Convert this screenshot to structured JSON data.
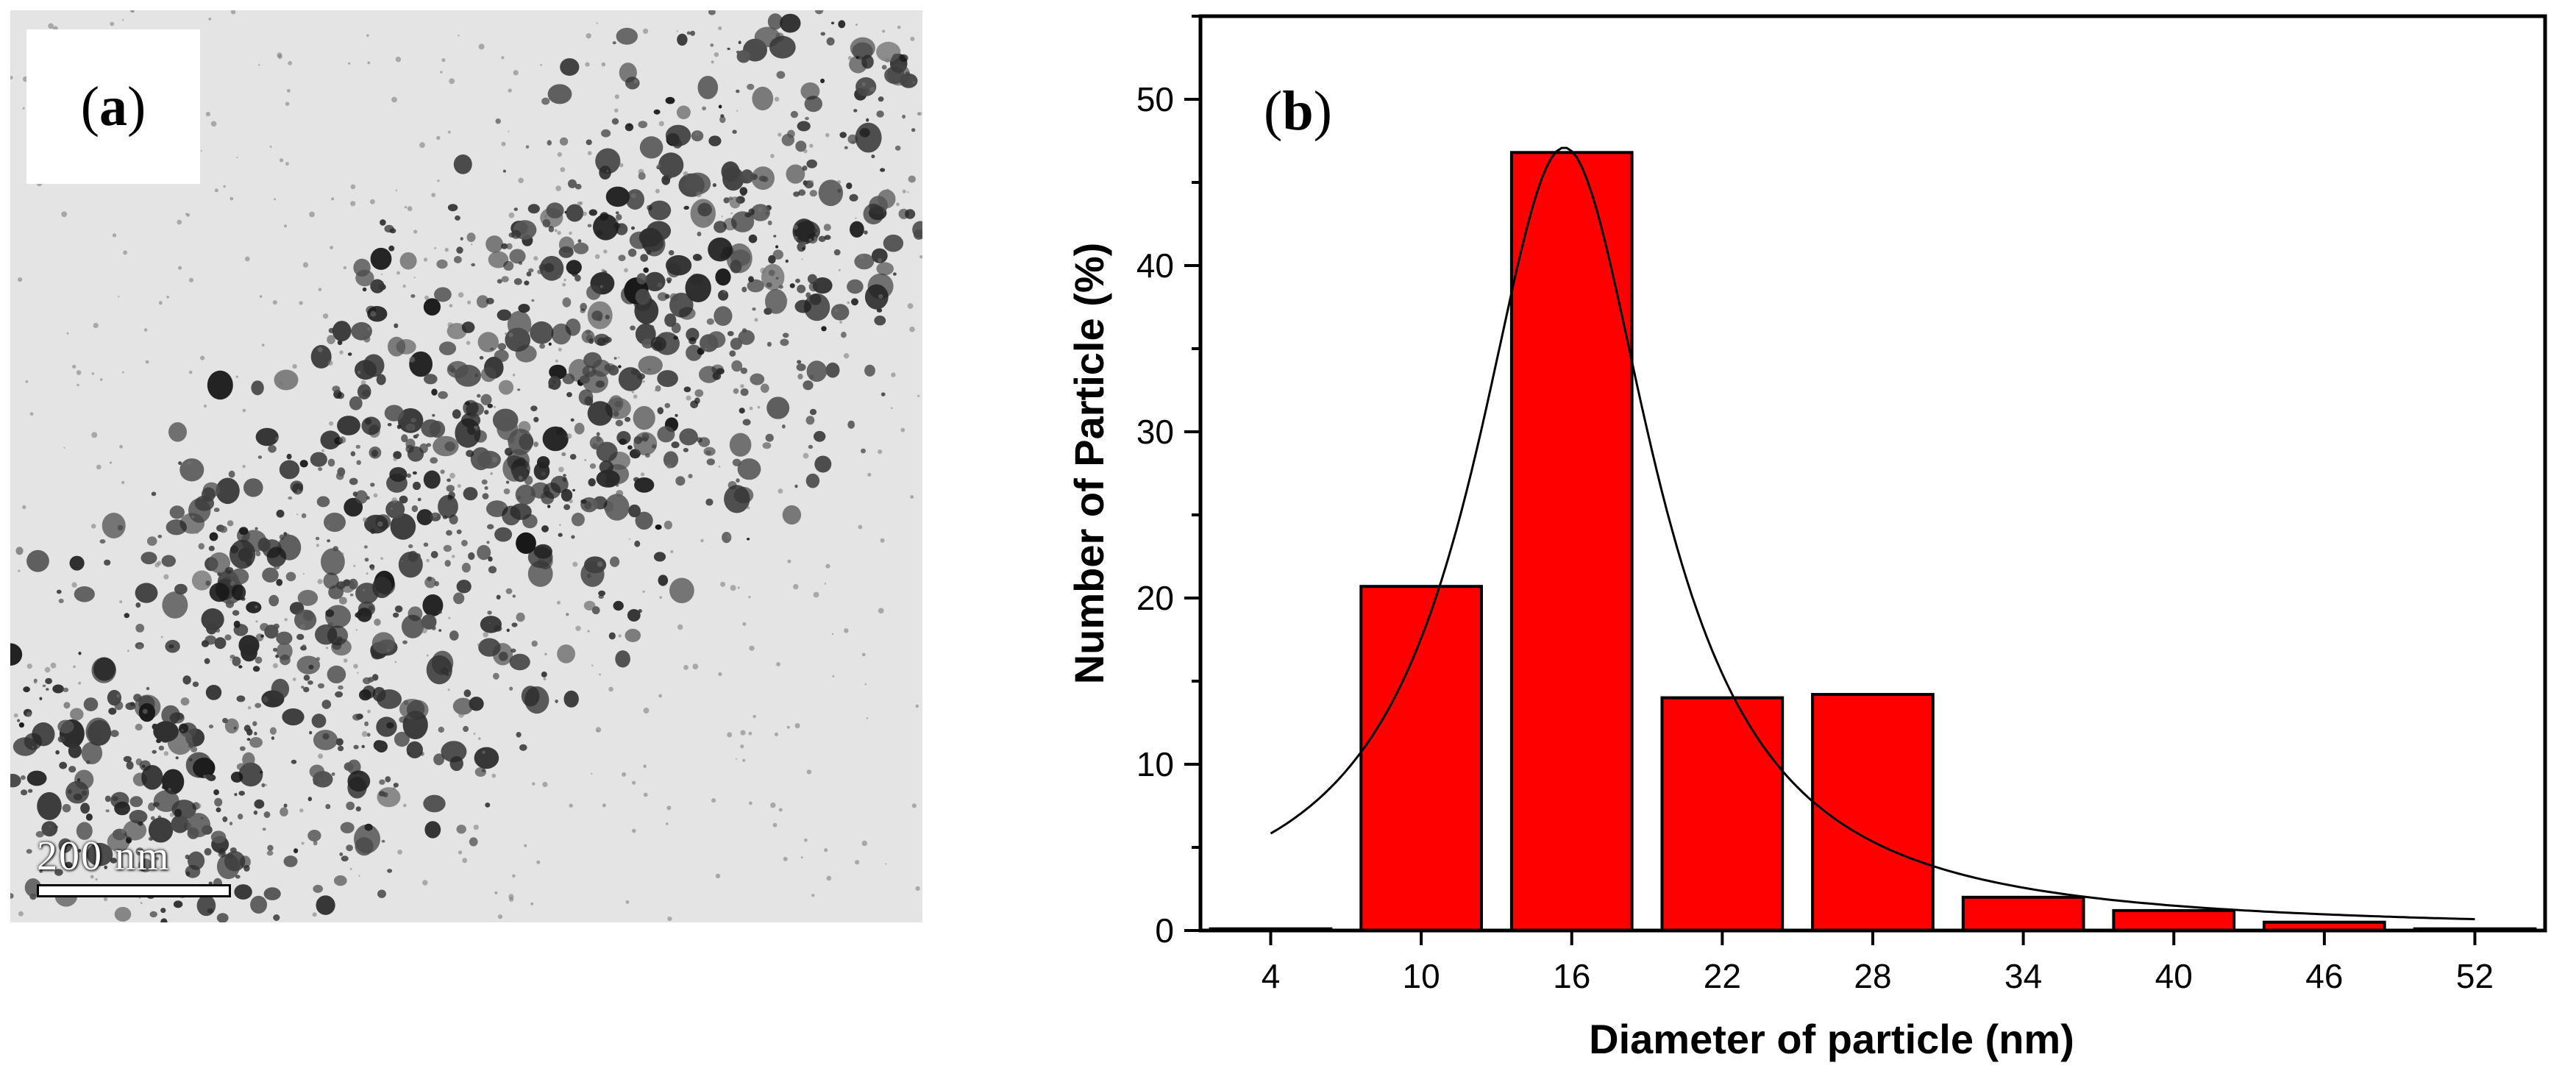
{
  "panel_a": {
    "label_open": "(",
    "label_letter": "a",
    "label_close": ")",
    "scale_bar_text": "200 nm"
  },
  "panel_b": {
    "label_open": "(",
    "label_letter": "b",
    "label_close": ")"
  },
  "colors": {
    "bar_fill": "#ff0000",
    "bar_stroke": "#000000",
    "fit_line": "#000000",
    "tem_background": "#e4e4e4",
    "particle": "#1e1e1e"
  },
  "chart_data": {
    "type": "bar",
    "title": "",
    "xlabel": "Diameter of particle (nm)",
    "ylabel": "Number of Particle (%)",
    "categories": [
      "4",
      "10",
      "16",
      "22",
      "28",
      "34",
      "40",
      "46",
      "52"
    ],
    "x": [
      4,
      10,
      16,
      22,
      28,
      34,
      40,
      46,
      52
    ],
    "values": [
      0.1,
      20.7,
      46.8,
      14.0,
      14.2,
      2.0,
      1.2,
      0.5,
      0.1
    ],
    "xlim": [
      1.2,
      54.8
    ],
    "ylim": [
      0,
      55
    ],
    "yticks": [
      0,
      10,
      20,
      30,
      40,
      50
    ],
    "grid": false,
    "fit_curve": {
      "type": "lorentzian",
      "center": 15.7,
      "hwhm": 4.4,
      "amplitude": 47.1,
      "x_range": [
        4,
        52
      ]
    }
  }
}
